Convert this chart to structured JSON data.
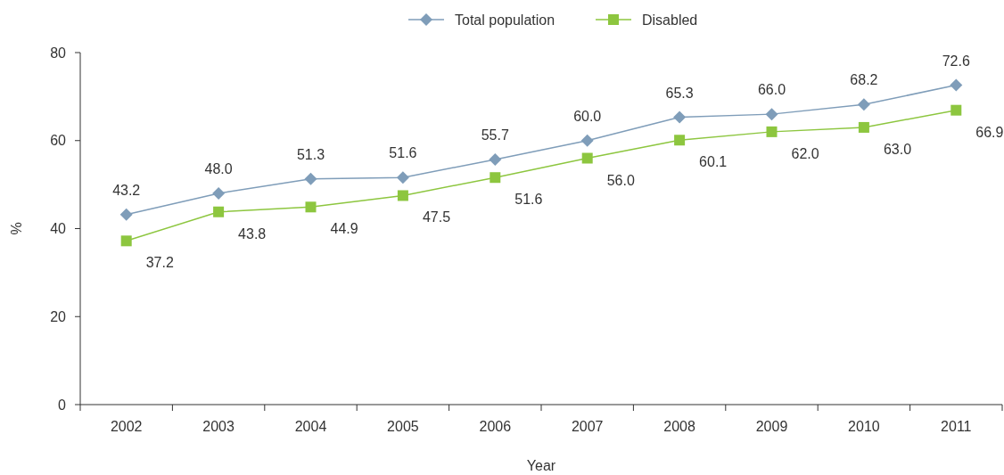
{
  "chart_data": {
    "type": "line",
    "xlabel": "Year",
    "ylabel": "%",
    "categories": [
      "2002",
      "2003",
      "2004",
      "2005",
      "2006",
      "2007",
      "2008",
      "2009",
      "2010",
      "2011"
    ],
    "series": [
      {
        "name": "Total population",
        "color": "#7f9db9",
        "marker": "diamond",
        "values": [
          43.2,
          48.0,
          51.3,
          51.6,
          55.7,
          60.0,
          65.3,
          66.0,
          68.2,
          72.6
        ],
        "value_labels": [
          "43.2",
          "48.0",
          "51.3",
          "51.6",
          "55.7",
          "60.0",
          "65.3",
          "66.0",
          "68.2",
          "72.6"
        ]
      },
      {
        "name": "Disabled",
        "color": "#8dc63f",
        "marker": "square",
        "values": [
          37.2,
          43.8,
          44.9,
          47.5,
          51.6,
          56.0,
          60.1,
          62.0,
          63.0,
          66.9
        ],
        "value_labels": [
          "37.2",
          "43.8",
          "44.9",
          "47.5",
          "51.6",
          "56.0",
          "60.1",
          "62.0",
          "63.0",
          "66.9"
        ]
      }
    ],
    "ylim": [
      0,
      80
    ],
    "yticks": [
      0,
      20,
      40,
      60,
      80
    ],
    "grid": false,
    "legend": "top"
  }
}
